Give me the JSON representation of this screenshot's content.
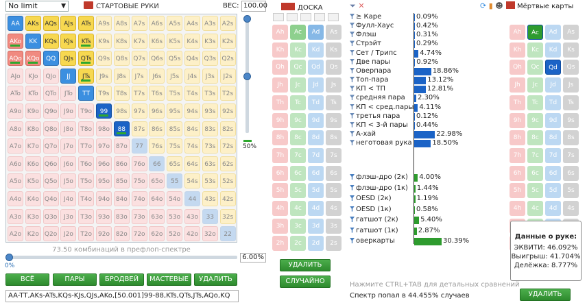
{
  "game_select": {
    "value": "No limit"
  },
  "hands": {
    "title": "СТАРТОВЫЕ РУКИ",
    "weight_label": "ВЕС:",
    "weight_value": "100.00"
  },
  "ranks": [
    "A",
    "K",
    "Q",
    "J",
    "T",
    "9",
    "8",
    "7",
    "6",
    "5",
    "4",
    "3",
    "2"
  ],
  "selected": {
    "pairs": [
      "AA",
      "KK",
      "QQ",
      "JJ",
      "TT",
      "99",
      "88"
    ],
    "suited": [
      "AKs",
      "AQs",
      "AJs",
      "ATs",
      "KQs",
      "KJs",
      "KTs",
      "QJs",
      "QTs",
      "JTs"
    ],
    "offsuit": [
      "AKo",
      "AQo",
      "KQo"
    ],
    "partial_bars": [
      "AKo",
      "AQo",
      "KQo",
      "KTs",
      "QTs",
      "JTs",
      "99",
      "88"
    ],
    "dim_pairs": [
      "77",
      "66",
      "55",
      "44",
      "33",
      "22"
    ]
  },
  "range": {
    "combo_count": "73.50 комбинаций в префлоп-спектре",
    "slider_left_pct": "0%",
    "slider_pct": "6.00%",
    "vertical_pct": "50%",
    "vertical_value": 0.5,
    "text": "AA-TT,AKs-ATs,KQs-KJs,QJs,AKo,[50.001]99-88,KTs,QTs,JTs,AQo,KQ"
  },
  "range_buttons": [
    "ВСЁ",
    "ПАРЫ",
    "БРОДВЕЙ",
    "МАСТЕВЫЕ",
    "УДАЛИТЬ"
  ],
  "board": {
    "title": "ДОСКА",
    "delete_label": "УДАЛИТЬ",
    "random_label": "СЛУЧАЙНО",
    "rows": [
      "A",
      "K",
      "Q",
      "J",
      "T",
      "9",
      "8",
      "7",
      "6",
      "5",
      "4",
      "3",
      "2"
    ],
    "suits": [
      "h",
      "c",
      "d",
      "s"
    ],
    "on_cards": [
      "Ac",
      "Ad"
    ],
    "mid_cards": []
  },
  "stats": {
    "rows": [
      {
        "label": "≥ Каре",
        "value": "0.09%",
        "pct": 0.09,
        "color": "#1b63c6"
      },
      {
        "label": "Фулл-Хаус",
        "value": "0.42%",
        "pct": 0.42,
        "color": "#1b63c6"
      },
      {
        "label": "Флэш",
        "value": "0.31%",
        "pct": 0.31,
        "color": "#1b63c6"
      },
      {
        "label": "Стрэйт",
        "value": "0.29%",
        "pct": 0.29,
        "color": "#1b63c6"
      },
      {
        "label": "Сет / Трипс",
        "value": "4.74%",
        "pct": 4.74,
        "color": "#1b63c6"
      },
      {
        "label": "Две пары",
        "value": "0.92%",
        "pct": 0.92,
        "color": "#1b63c6"
      },
      {
        "label": "Оверпара",
        "value": "18.86%",
        "pct": 18.86,
        "color": "#1b63c6"
      },
      {
        "label": "Топ-пара",
        "value": "13.12%",
        "pct": 13.12,
        "color": "#1b63c6"
      },
      {
        "label": "КП < ТП",
        "value": "12.81%",
        "pct": 12.81,
        "color": "#1b63c6"
      },
      {
        "label": "средняя пара",
        "value": "2.30%",
        "pct": 2.3,
        "color": "#1b63c6"
      },
      {
        "label": "КП < сред.пары",
        "value": "4.11%",
        "pct": 4.11,
        "color": "#1b63c6"
      },
      {
        "label": "третья пара",
        "value": "0.12%",
        "pct": 0.12,
        "color": "#1b63c6"
      },
      {
        "label": "КП < 3-й пары",
        "value": "0.44%",
        "pct": 0.44,
        "color": "#1b63c6"
      },
      {
        "label": "А-хай",
        "value": "22.98%",
        "pct": 22.98,
        "color": "#1b63c6"
      },
      {
        "label": "неготовая рука",
        "value": "18.50%",
        "pct": 18.5,
        "color": "#1b63c6"
      },
      {
        "label": "флэш-дро (2к)",
        "value": "4.00%",
        "pct": 4.0,
        "color": "#2e9b2e"
      },
      {
        "label": "флэш-дро (1к)",
        "value": "1.44%",
        "pct": 1.44,
        "color": "#2e9b2e"
      },
      {
        "label": "OESD (2к)",
        "value": "1.19%",
        "pct": 1.19,
        "color": "#2e9b2e"
      },
      {
        "label": "OESD (1к)",
        "value": "0.58%",
        "pct": 0.58,
        "color": "#2e9b2e"
      },
      {
        "label": "гатшот (2к)",
        "value": "5.40%",
        "pct": 5.4,
        "color": "#2e9b2e"
      },
      {
        "label": "гатшот (1к)",
        "value": "2.87%",
        "pct": 2.87,
        "color": "#2e9b2e"
      },
      {
        "label": "оверкарты",
        "value": "30.39%",
        "pct": 30.39,
        "color": "#2e9b2e"
      }
    ],
    "hint": "Нажмите CTRL+TAB для детальных сравнений",
    "range_hit": "Спектр попал в 44.455% случаев"
  },
  "dead": {
    "title": "Мёртвые карты",
    "on_cards": [
      "Ac",
      "Qd"
    ],
    "delete_label": "УДАЛИТЬ"
  },
  "equity": {
    "title": "Данные о руке:",
    "equity": "ЭКВИТИ: 46.092%",
    "win": "Выигрыш: 41.704%",
    "tie": "Делёжка: 8.777%"
  }
}
